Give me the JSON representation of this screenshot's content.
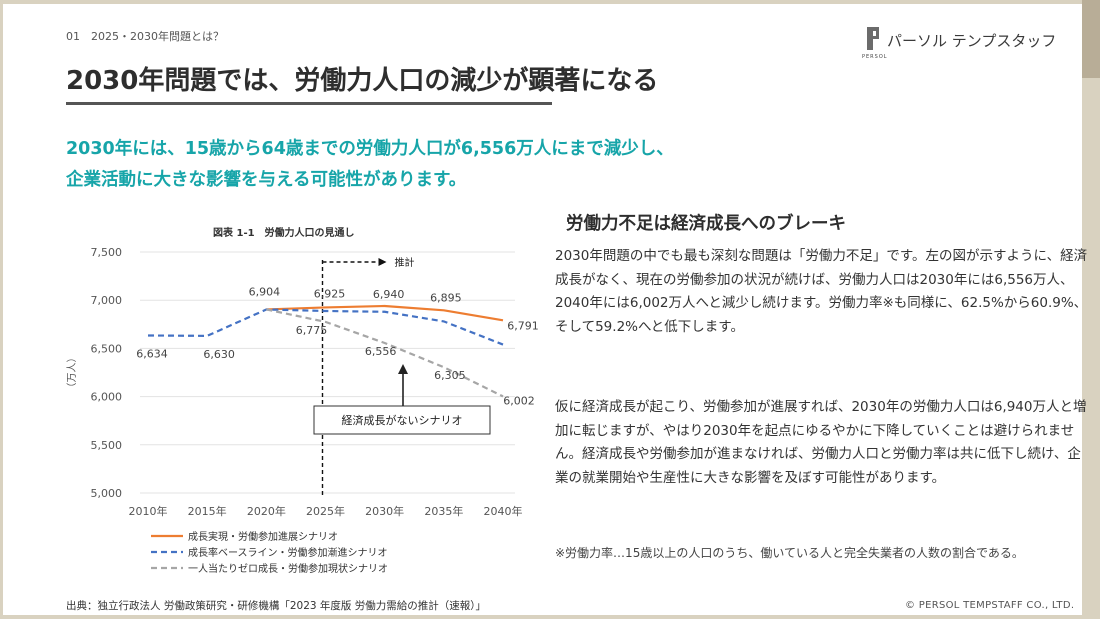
{
  "header": {
    "breadcrumb": "01　2025・2030年問題とは？",
    "logo_text": "パーソル テンプスタッフ",
    "logo_sub": "PERSOL"
  },
  "title": "2030年問題では、労働力人口の減少が顕著になる",
  "lead": {
    "line1": "2030年には、15歳から64歳までの労働力人口が6,556万人にまで減少し、",
    "line2": "企業活動に大きな影響を与える可能性があります。"
  },
  "section": {
    "heading": "労働力不足は経済成長へのブレーキ",
    "paragraph1": "2030年問題の中でも最も深刻な問題は「労働力不足」です。左の図が示すように、経済成長がなく、現在の労働参加の状況が続けば、労働力人口は2030年には6,556万人、2040年には6,002万人へと減少し続けます。労働力率※も同様に、62.5%から60.9%、そして59.2%へと低下します。",
    "paragraph2": "仮に経済成長が起こり、労働参加が進展すれば、2030年の労働力人口は6,940万人と増加に転じますが、やはり2030年を起点にゆるやかに下降していくことは避けられません。経済成長や労働参加が進まなければ、労働力人口と労働力率は共に低下し続け、企業の就業開始や生産性に大きな影響を及ぼす可能性があります。",
    "note": "※労働力率…15歳以上の人口のうち、働いている人と完全失業者の人数の割合である。"
  },
  "footer": {
    "source": "出典：独立行政法人 労働政策研究・研修機構「2023 年度版 労働力需給の推計（速報）」",
    "copyright": "© PERSOL TEMPSTAFF CO., LTD."
  },
  "chart_data": {
    "type": "line",
    "title": "図表 1-1　労働力人口の見通し",
    "ylabel": "（万人）",
    "xlabel": "",
    "categories": [
      "2010年",
      "2015年",
      "2020年",
      "2025年",
      "2030年",
      "2035年",
      "2040年"
    ],
    "x": [
      2010,
      2015,
      2020,
      2025,
      2030,
      2035,
      2040
    ],
    "ylim": [
      5000,
      7500
    ],
    "yticks": [
      5000,
      5500,
      6000,
      6500,
      7000,
      7500
    ],
    "ytick_labels": [
      "5,000",
      "5,500",
      "6,000",
      "6,500",
      "7,000",
      "7,500"
    ],
    "projection_label": "推計",
    "projection_start": 2025,
    "annotation": "経済成長がないシナリオ",
    "series": [
      {
        "name": "成長実現・労働参加進展シナリオ",
        "color": "#ed7d31",
        "style": "solid",
        "x": [
          2020,
          2025,
          2030,
          2035,
          2040
        ],
        "values": [
          6904,
          6925,
          6940,
          6895,
          6791
        ],
        "labels": [
          "6,904",
          "6,925",
          "6,940",
          "6,895",
          "6,791"
        ]
      },
      {
        "name": "成長率ベースライン・労働参加漸進シナリオ",
        "color": "#4472c4",
        "style": "dashed",
        "x": [
          2010,
          2015,
          2020,
          2025,
          2030,
          2035,
          2040
        ],
        "values": [
          6634,
          6630,
          6904,
          6888,
          6880,
          6780,
          6540
        ],
        "labels": [
          "6,634",
          "6,630",
          "",
          "",
          "",
          "",
          ""
        ]
      },
      {
        "name": "一人当たりゼロ成長・労働参加現状シナリオ",
        "color": "#a6a6a6",
        "style": "dashed",
        "x": [
          2020,
          2025,
          2030,
          2035,
          2040
        ],
        "values": [
          6904,
          6775,
          6556,
          6305,
          6002
        ],
        "labels": [
          "",
          "6,775",
          "6,556",
          "6,305",
          "6,002"
        ]
      }
    ]
  }
}
